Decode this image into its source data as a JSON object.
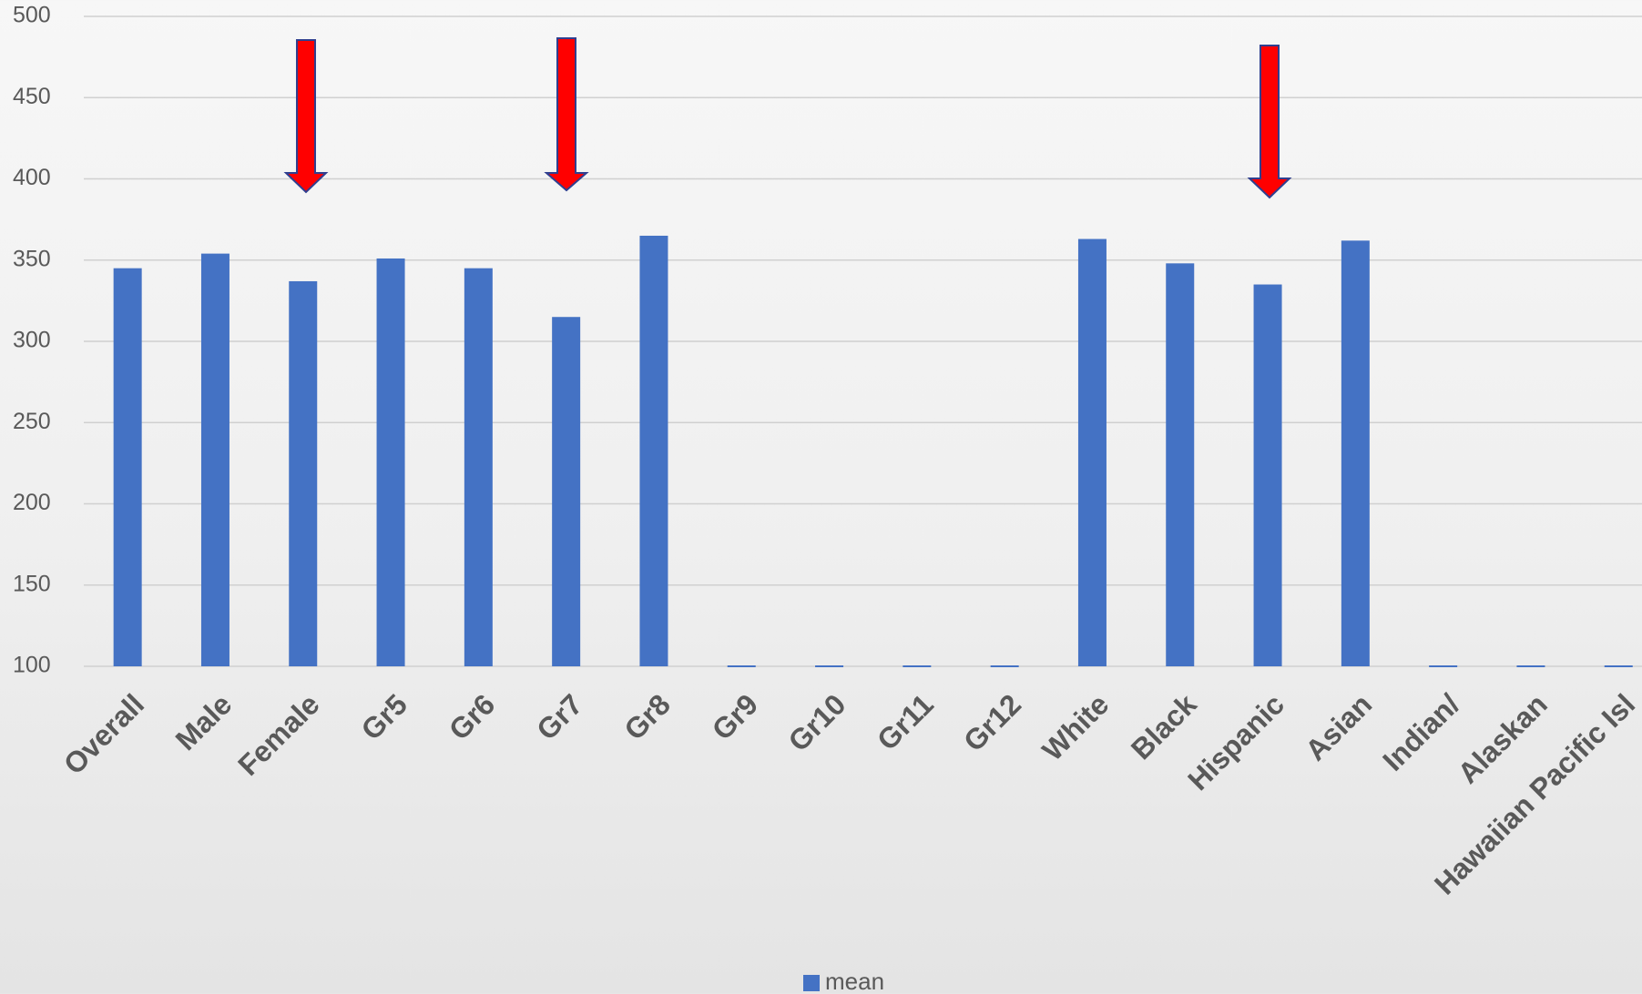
{
  "chart_data": {
    "type": "bar",
    "categories": [
      "Overall",
      "Male",
      "Female",
      "Gr5",
      "Gr6",
      "Gr7",
      "Gr8",
      "Gr9",
      "Gr10",
      "Gr11",
      "Gr12",
      "White",
      "Black",
      "Hispanic",
      "Asian",
      "Indian/",
      "Alaskan",
      "Hawaiian Pacific Isl"
    ],
    "series": [
      {
        "name": "mean",
        "color": "#4472c4",
        "values": [
          345,
          354,
          337,
          351,
          345,
          315,
          365,
          100,
          100,
          100,
          100,
          363,
          348,
          335,
          362,
          100,
          100,
          100
        ]
      }
    ],
    "ylim": [
      100,
      500
    ],
    "yticks": [
      100,
      150,
      200,
      250,
      300,
      350,
      400,
      450,
      500
    ],
    "grid": true,
    "legend": "bottom"
  }
}
